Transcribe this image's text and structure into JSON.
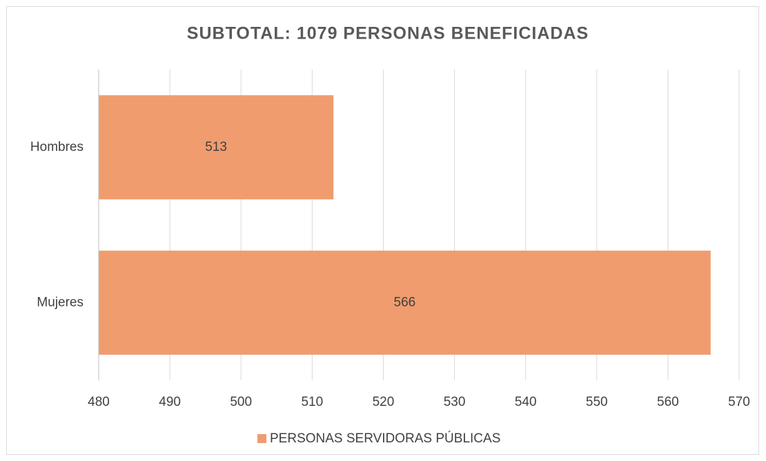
{
  "chart_data": {
    "type": "hbar",
    "title": "SUBTOTAL: 1079 PERSONAS BENEFICIADAS",
    "categories": [
      "Hombres",
      "Mujeres"
    ],
    "series": [
      {
        "name": "PERSONAS SERVIDORAS PÚBLICAS",
        "color": "#f09c6e",
        "values": [
          513,
          566
        ]
      }
    ],
    "xlim": [
      480,
      570
    ],
    "xticks": [
      480,
      490,
      500,
      510,
      520,
      530,
      540,
      550,
      560,
      570
    ],
    "grid": true,
    "legend": "bottom"
  }
}
